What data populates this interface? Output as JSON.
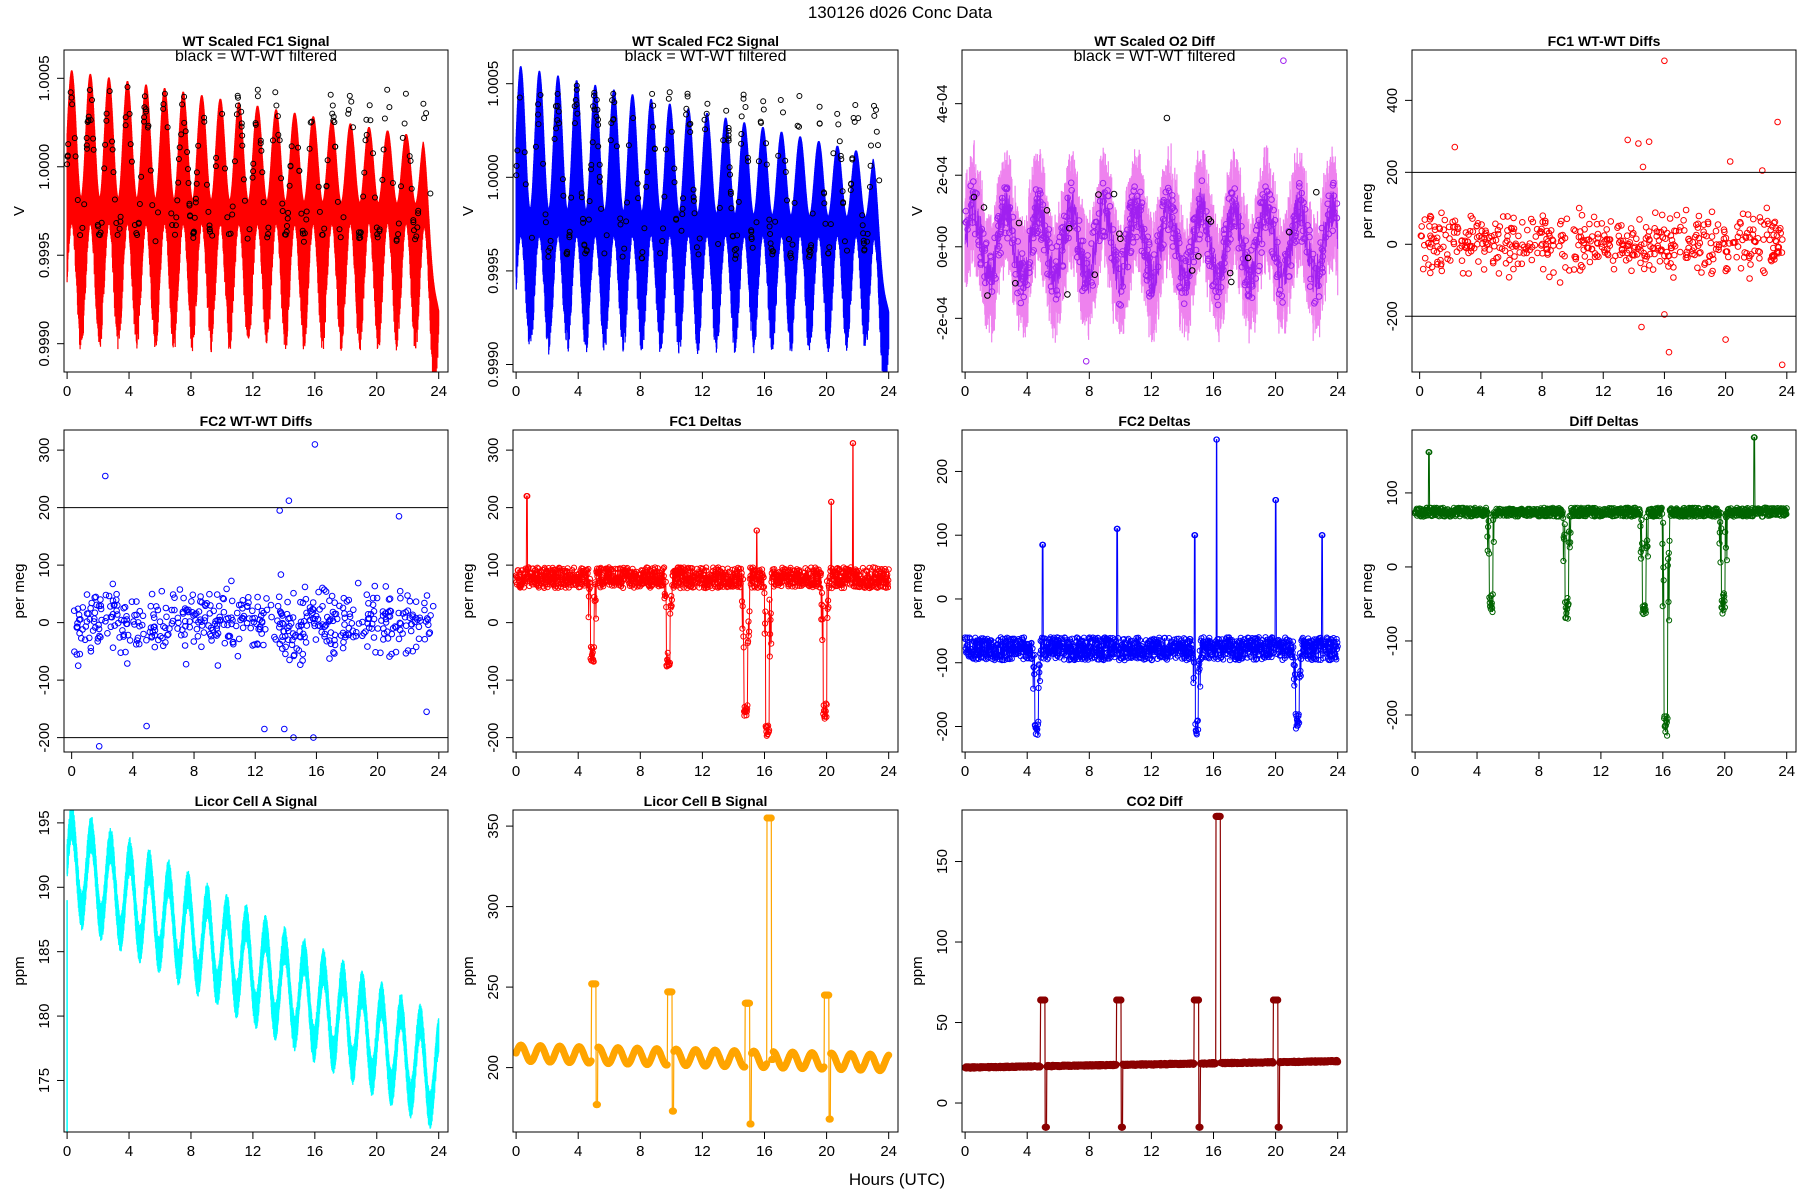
{
  "figure": {
    "title": "130126   d026   Conc Data",
    "xlabel": "Hours (UTC)"
  },
  "chart_data": [
    {
      "id": "p1",
      "type": "line",
      "title": "WT Scaled FC1 Signal",
      "annotation": "black = WT-WT filtered",
      "ylabel": "V",
      "xlim": [
        -0.2,
        24.6
      ],
      "ylim": [
        0.99884,
        1.00066
      ],
      "xticks": [
        0,
        4,
        8,
        12,
        16,
        20,
        24
      ],
      "yticks": [
        0.999,
        0.9995,
        1.0,
        1.0005
      ],
      "ytick_labels": [
        "0.9990",
        "0.9995",
        "1.0000",
        "1.0005"
      ],
      "color": "#ff0000",
      "overlay_color": "#000000",
      "series": {
        "baseline": 0.99975,
        "upper_envelope_start": 1.00055,
        "upper_envelope_end": 1.00015,
        "lower_envelope": 0.99895,
        "oscillation_hours": 1.2,
        "min_at_hour_24": 0.99885
      }
    },
    {
      "id": "p2",
      "type": "line",
      "title": "WT Scaled FC2 Signal",
      "annotation": "black = WT-WT filtered",
      "ylabel": "V",
      "xlim": [
        -0.2,
        24.6
      ],
      "ylim": [
        0.99896,
        1.00068
      ],
      "xticks": [
        0,
        4,
        8,
        12,
        16,
        20,
        24
      ],
      "yticks": [
        0.999,
        0.9995,
        1.0,
        1.0005
      ],
      "ytick_labels": [
        "0.9990",
        "0.9995",
        "1.0000",
        "1.0005"
      ],
      "color": "#0000ff",
      "overlay_color": "#000000",
      "series": {
        "baseline": 0.99975,
        "upper_envelope_start": 1.0006,
        "upper_envelope_end": 1.0001,
        "lower_envelope": 0.99905,
        "oscillation_hours": 1.2,
        "min_at_hour_24": 0.999
      }
    },
    {
      "id": "p3",
      "type": "line",
      "title": "WT Scaled O2 Diff",
      "annotation": "black = WT-WT filtered",
      "ylabel": "V",
      "xlim": [
        -0.2,
        24.6
      ],
      "ylim": [
        -0.00035,
        0.00055
      ],
      "xticks": [
        0,
        4,
        8,
        12,
        16,
        20,
        24
      ],
      "yticks": [
        -0.0002,
        0.0,
        0.0002,
        0.0004
      ],
      "ytick_labels": [
        "-2e-04",
        "0e+00",
        "2e-04",
        "4e-04"
      ],
      "color": "#a020f0",
      "band_color": "#ee82ee",
      "overlay_color": "#000000",
      "series": {
        "baseline": 1e-05,
        "amplitude": 0.00012,
        "min_value": -0.00032,
        "max_value": 0.00052
      }
    },
    {
      "id": "p4",
      "type": "scatter",
      "title": "FC1 WT-WT Diffs",
      "ylabel": "per meg",
      "xlim": [
        -0.5,
        24.6
      ],
      "ylim": [
        -355,
        540
      ],
      "xticks": [
        0,
        4,
        8,
        12,
        16,
        20,
        24
      ],
      "yticks": [
        -200,
        0,
        200,
        400
      ],
      "ytick_labels": [
        "-200",
        "0",
        "200",
        "400"
      ],
      "hlines": [
        200,
        -200
      ],
      "color": "#ff0000",
      "series": {
        "center": 0,
        "spread": 60,
        "n_points": 520,
        "outliers": [
          [
            2.3,
            270
          ],
          [
            13.6,
            290
          ],
          [
            14.3,
            280
          ],
          [
            14.6,
            215
          ],
          [
            15.0,
            285
          ],
          [
            16.0,
            510
          ],
          [
            16.0,
            -195
          ],
          [
            16.3,
            -300
          ],
          [
            20.0,
            -265
          ],
          [
            22.4,
            205
          ],
          [
            23.4,
            340
          ],
          [
            23.7,
            -335
          ],
          [
            20.3,
            230
          ],
          [
            14.5,
            -230
          ]
        ]
      }
    },
    {
      "id": "p5",
      "type": "scatter",
      "title": "FC2 WT-WT Diffs",
      "ylabel": "per meg",
      "xlim": [
        -0.5,
        24.6
      ],
      "ylim": [
        -225,
        335
      ],
      "xticks": [
        0,
        4,
        8,
        12,
        16,
        20,
        24
      ],
      "yticks": [
        -200,
        -100,
        0,
        100,
        200,
        300
      ],
      "ytick_labels": [
        "-200",
        "-100",
        "0",
        "100",
        "200",
        "300"
      ],
      "hlines": [
        200,
        -200
      ],
      "color": "#0000ff",
      "series": {
        "center": 0,
        "spread": 45,
        "n_points": 520,
        "outliers": [
          [
            2.2,
            255
          ],
          [
            15.9,
            310
          ],
          [
            13.6,
            195
          ],
          [
            14.2,
            212
          ],
          [
            13.9,
            -185
          ],
          [
            12.6,
            -185
          ],
          [
            14.5,
            -200
          ],
          [
            15.8,
            -200
          ],
          [
            1.8,
            -215
          ],
          [
            4.9,
            -180
          ],
          [
            21.4,
            185
          ],
          [
            23.2,
            -155
          ]
        ]
      }
    },
    {
      "id": "p6",
      "type": "line",
      "title": "FC1 Deltas",
      "ylabel": "per meg",
      "xlim": [
        -0.2,
        24.6
      ],
      "ylim": [
        -225,
        335
      ],
      "xticks": [
        0,
        4,
        8,
        12,
        16,
        20,
        24
      ],
      "yticks": [
        -200,
        -100,
        0,
        100,
        200,
        300
      ],
      "ytick_labels": [
        "-200",
        "-100",
        "0",
        "100",
        "200",
        "300"
      ],
      "color": "#ff0000",
      "series": {
        "baseline": 78,
        "noise": 18,
        "dips": [
          [
            4.9,
            -70
          ],
          [
            9.8,
            -80
          ],
          [
            14.8,
            -170
          ],
          [
            16.2,
            -200
          ],
          [
            19.9,
            -170
          ]
        ],
        "spikes": [
          [
            0.7,
            220
          ],
          [
            21.7,
            312
          ],
          [
            20.3,
            210
          ],
          [
            15.5,
            160
          ]
        ]
      }
    },
    {
      "id": "p7",
      "type": "line",
      "title": "FC2 Deltas",
      "ylabel": "per meg",
      "xlim": [
        -0.2,
        24.6
      ],
      "ylim": [
        -240,
        265
      ],
      "xticks": [
        0,
        4,
        8,
        12,
        16,
        20,
        24
      ],
      "yticks": [
        -200,
        -100,
        0,
        100,
        200
      ],
      "ytick_labels": [
        "-200",
        "-100",
        "0",
        "100",
        "200"
      ],
      "color": "#0000ff",
      "series": {
        "baseline": -78,
        "noise": 18,
        "spikes": [
          [
            5.0,
            85
          ],
          [
            9.8,
            110
          ],
          [
            14.8,
            100
          ],
          [
            16.2,
            250
          ],
          [
            20.0,
            155
          ],
          [
            23.0,
            100
          ]
        ],
        "dips": [
          [
            4.6,
            -220
          ],
          [
            14.9,
            -215
          ],
          [
            21.4,
            -205
          ]
        ]
      }
    },
    {
      "id": "p8",
      "type": "line",
      "title": "Diff Deltas",
      "ylabel": "per meg",
      "xlim": [
        -0.2,
        24.6
      ],
      "ylim": [
        -250,
        185
      ],
      "xticks": [
        0,
        4,
        8,
        12,
        16,
        20,
        24
      ],
      "yticks": [
        -200,
        -100,
        0,
        100
      ],
      "ytick_labels": [
        "-200",
        "-100",
        "0",
        "100"
      ],
      "color": "#006400",
      "series": {
        "baseline": 74,
        "noise": 6,
        "dips": [
          [
            4.9,
            -65
          ],
          [
            9.8,
            -70
          ],
          [
            14.8,
            -65
          ],
          [
            16.2,
            -230
          ],
          [
            19.9,
            -65
          ]
        ],
        "spikes": [
          [
            0.9,
            155
          ],
          [
            21.9,
            175
          ]
        ]
      }
    },
    {
      "id": "p9",
      "type": "line",
      "title": "Licor Cell A Signal",
      "ylabel": "ppm",
      "xlim": [
        -0.2,
        24.6
      ],
      "ylim": [
        171,
        196
      ],
      "xticks": [
        0,
        4,
        8,
        12,
        16,
        20,
        24
      ],
      "yticks": [
        175,
        180,
        185,
        190,
        195
      ],
      "ytick_labels": [
        "175",
        "180",
        "185",
        "190",
        "195"
      ],
      "color": "#00ffff",
      "series": {
        "start_trend": 192,
        "end_trend": 175.5,
        "amplitude": 3.2,
        "period_hours": 1.25,
        "initial_dip": 171
      }
    },
    {
      "id": "p10",
      "type": "line",
      "title": "Licor Cell B Signal",
      "ylabel": "ppm",
      "xlim": [
        -0.2,
        24.6
      ],
      "ylim": [
        160,
        360
      ],
      "xticks": [
        0,
        4,
        8,
        12,
        16,
        20,
        24
      ],
      "yticks": [
        200,
        250,
        300,
        350
      ],
      "ytick_labels": [
        "200",
        "250",
        "300",
        "350"
      ],
      "color": "#ffa500",
      "series": {
        "baseline": 209,
        "amplitude": 5,
        "period_hours": 1.25,
        "events": [
          [
            4.9,
            252,
            177
          ],
          [
            9.8,
            247,
            173
          ],
          [
            14.8,
            240,
            165
          ],
          [
            16.2,
            355,
            205
          ],
          [
            19.9,
            245,
            168
          ]
        ]
      }
    },
    {
      "id": "p11",
      "type": "line",
      "title": "CO2 Diff",
      "ylabel": "ppm",
      "xlim": [
        -0.2,
        24.6
      ],
      "ylim": [
        -18,
        182
      ],
      "xticks": [
        0,
        4,
        8,
        12,
        16,
        20,
        24
      ],
      "yticks": [
        0,
        50,
        100,
        150
      ],
      "ytick_labels": [
        "0",
        "50",
        "100",
        "150"
      ],
      "color": "#8b0000",
      "series": {
        "baseline_start": 22,
        "baseline_end": 26,
        "events": [
          [
            4.9,
            64,
            -15
          ],
          [
            9.8,
            64,
            -15
          ],
          [
            14.8,
            64,
            -15
          ],
          [
            16.2,
            178,
            25
          ],
          [
            19.9,
            64,
            -15
          ]
        ]
      }
    }
  ]
}
